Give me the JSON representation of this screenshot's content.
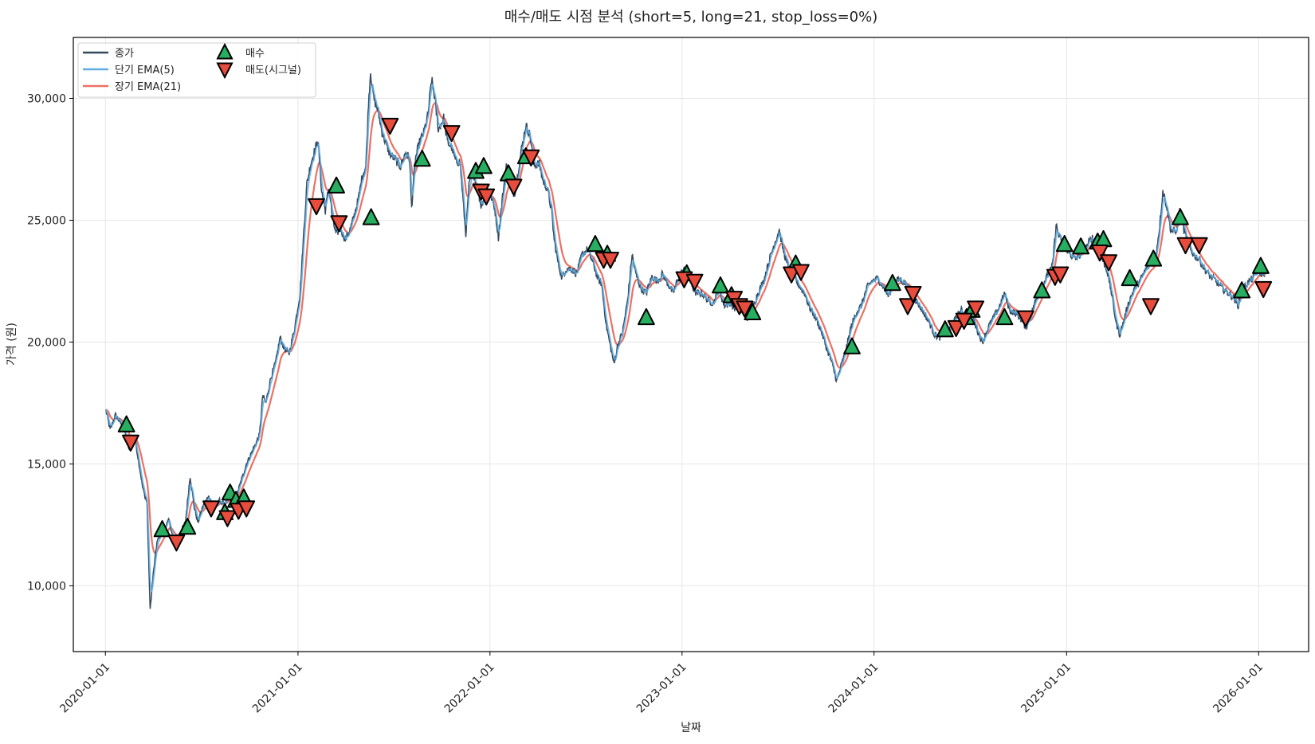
{
  "chart_data": {
    "type": "line",
    "title": "매수/매도 시점 분석 (short=5, long=21, stop_loss=0%)",
    "xlabel": "날짜",
    "ylabel": "가격 (원)",
    "x_range": [
      "2019-11-01",
      "2026-04-06"
    ],
    "ylim": [
      7300,
      32500
    ],
    "grid": true,
    "legend_position": "top-left",
    "x_ticks": [
      "2020-01-01",
      "2021-01-01",
      "2022-01-01",
      "2023-01-01",
      "2024-01-01",
      "2025-01-01",
      "2026-01-01"
    ],
    "y_ticks": [
      10000,
      15000,
      20000,
      25000,
      30000
    ],
    "y_tick_labels": [
      "10,000",
      "15,000",
      "20,000",
      "25,000",
      "30,000"
    ],
    "legend": [
      {
        "label": "종가",
        "kind": "line",
        "color": "#34495e"
      },
      {
        "label": "단기 EMA(5)",
        "kind": "line",
        "color": "#5dade2"
      },
      {
        "label": "장기 EMA(21)",
        "kind": "line",
        "color": "#ec7063"
      },
      {
        "label": "매수",
        "kind": "up",
        "color": "#27ae60"
      },
      {
        "label": "매도(시그널)",
        "kind": "down",
        "color": "#e74c3c"
      }
    ],
    "price_anchors": [
      [
        "2020-01-02",
        17200
      ],
      [
        "2020-01-10",
        16400
      ],
      [
        "2020-01-20",
        17000
      ],
      [
        "2020-02-05",
        16500
      ],
      [
        "2020-02-15",
        15600
      ],
      [
        "2020-02-25",
        16200
      ],
      [
        "2020-03-05",
        15000
      ],
      [
        "2020-03-12",
        14000
      ],
      [
        "2020-03-20",
        13400
      ],
      [
        "2020-03-26",
        9000
      ],
      [
        "2020-04-01",
        10500
      ],
      [
        "2020-04-08",
        11800
      ],
      [
        "2020-04-20",
        12300
      ],
      [
        "2020-05-01",
        12700
      ],
      [
        "2020-05-10",
        11800
      ],
      [
        "2020-05-20",
        12100
      ],
      [
        "2020-06-01",
        12600
      ],
      [
        "2020-06-10",
        14500
      ],
      [
        "2020-06-18",
        13200
      ],
      [
        "2020-06-25",
        12600
      ],
      [
        "2020-07-05",
        13300
      ],
      [
        "2020-07-15",
        13700
      ],
      [
        "2020-07-25",
        13100
      ],
      [
        "2020-08-05",
        13500
      ],
      [
        "2020-08-15",
        13300
      ],
      [
        "2020-08-25",
        13800
      ],
      [
        "2020-09-05",
        13600
      ],
      [
        "2020-09-15",
        14300
      ],
      [
        "2020-09-25",
        15000
      ],
      [
        "2020-10-10",
        15700
      ],
      [
        "2020-10-20",
        16200
      ],
      [
        "2020-10-26",
        17800
      ],
      [
        "2020-11-01",
        17500
      ],
      [
        "2020-11-10",
        18500
      ],
      [
        "2020-11-20",
        19200
      ],
      [
        "2020-11-28",
        20200
      ],
      [
        "2020-12-05",
        19800
      ],
      [
        "2020-12-15",
        19500
      ],
      [
        "2020-12-25",
        20500
      ],
      [
        "2021-01-05",
        22000
      ],
      [
        "2021-01-12",
        24500
      ],
      [
        "2021-01-18",
        26500
      ],
      [
        "2021-01-25",
        27300
      ],
      [
        "2021-02-01",
        27800
      ],
      [
        "2021-02-08",
        28300
      ],
      [
        "2021-02-15",
        26200
      ],
      [
        "2021-02-22",
        25400
      ],
      [
        "2021-03-01",
        26400
      ],
      [
        "2021-03-08",
        25000
      ],
      [
        "2021-03-15",
        24400
      ],
      [
        "2021-03-22",
        24700
      ],
      [
        "2021-04-01",
        24200
      ],
      [
        "2021-04-10",
        24600
      ],
      [
        "2021-04-18",
        25200
      ],
      [
        "2021-04-26",
        25900
      ],
      [
        "2021-05-03",
        26800
      ],
      [
        "2021-05-10",
        27200
      ],
      [
        "2021-05-15",
        29800
      ],
      [
        "2021-05-19",
        31100
      ],
      [
        "2021-05-25",
        30000
      ],
      [
        "2021-06-02",
        29500
      ],
      [
        "2021-06-10",
        28600
      ],
      [
        "2021-06-18",
        28100
      ],
      [
        "2021-06-25",
        27700
      ],
      [
        "2021-07-05",
        27500
      ],
      [
        "2021-07-15",
        27200
      ],
      [
        "2021-07-25",
        27800
      ],
      [
        "2021-08-01",
        27500
      ],
      [
        "2021-08-05",
        25500
      ],
      [
        "2021-08-12",
        27500
      ],
      [
        "2021-08-20",
        28200
      ],
      [
        "2021-08-28",
        28600
      ],
      [
        "2021-09-05",
        29300
      ],
      [
        "2021-09-12",
        30800
      ],
      [
        "2021-09-18",
        30000
      ],
      [
        "2021-09-25",
        28700
      ],
      [
        "2021-10-05",
        29200
      ],
      [
        "2021-10-12",
        28200
      ],
      [
        "2021-10-20",
        28000
      ],
      [
        "2021-10-28",
        27400
      ],
      [
        "2021-11-05",
        27400
      ],
      [
        "2021-11-12",
        25500
      ],
      [
        "2021-11-16",
        24400
      ],
      [
        "2021-11-22",
        26400
      ],
      [
        "2021-11-30",
        27000
      ],
      [
        "2021-12-08",
        26300
      ],
      [
        "2021-12-15",
        25600
      ],
      [
        "2021-12-22",
        26000
      ],
      [
        "2022-01-03",
        26000
      ],
      [
        "2022-01-10",
        25500
      ],
      [
        "2022-01-17",
        24300
      ],
      [
        "2022-01-24",
        25800
      ],
      [
        "2022-02-01",
        27200
      ],
      [
        "2022-02-10",
        26800
      ],
      [
        "2022-02-16",
        26000
      ],
      [
        "2022-02-22",
        26800
      ],
      [
        "2022-03-01",
        27800
      ],
      [
        "2022-03-10",
        28900
      ],
      [
        "2022-03-18",
        28500
      ],
      [
        "2022-03-25",
        27300
      ],
      [
        "2022-04-05",
        27300
      ],
      [
        "2022-04-12",
        26600
      ],
      [
        "2022-04-20",
        26300
      ],
      [
        "2022-04-28",
        25400
      ],
      [
        "2022-05-03",
        24200
      ],
      [
        "2022-05-10",
        23300
      ],
      [
        "2022-05-18",
        22600
      ],
      [
        "2022-05-25",
        23000
      ],
      [
        "2022-06-05",
        23000
      ],
      [
        "2022-06-15",
        22800
      ],
      [
        "2022-06-25",
        23600
      ],
      [
        "2022-07-05",
        23800
      ],
      [
        "2022-07-15",
        23300
      ],
      [
        "2022-07-25",
        22600
      ],
      [
        "2022-08-01",
        22400
      ],
      [
        "2022-08-10",
        20700
      ],
      [
        "2022-08-18",
        19800
      ],
      [
        "2022-08-25",
        19100
      ],
      [
        "2022-09-01",
        19900
      ],
      [
        "2022-09-10",
        20400
      ],
      [
        "2022-09-20",
        21800
      ],
      [
        "2022-09-28",
        23600
      ],
      [
        "2022-10-05",
        22800
      ],
      [
        "2022-10-15",
        22200
      ],
      [
        "2022-10-25",
        22000
      ],
      [
        "2022-11-05",
        22700
      ],
      [
        "2022-11-15",
        22500
      ],
      [
        "2022-11-25",
        22800
      ],
      [
        "2022-12-05",
        22400
      ],
      [
        "2022-12-15",
        22000
      ],
      [
        "2022-12-28",
        22800
      ],
      [
        "2023-01-08",
        23000
      ],
      [
        "2023-01-18",
        22400
      ],
      [
        "2023-01-28",
        22000
      ],
      [
        "2023-02-08",
        22000
      ],
      [
        "2023-02-20",
        21700
      ],
      [
        "2023-03-02",
        21600
      ],
      [
        "2023-03-12",
        22200
      ],
      [
        "2023-03-22",
        21500
      ],
      [
        "2023-04-01",
        21600
      ],
      [
        "2023-04-12",
        21400
      ],
      [
        "2023-04-22",
        21400
      ],
      [
        "2023-05-05",
        21000
      ],
      [
        "2023-05-15",
        21400
      ],
      [
        "2023-05-25",
        22000
      ],
      [
        "2023-06-05",
        22500
      ],
      [
        "2023-06-15",
        23300
      ],
      [
        "2023-06-25",
        24000
      ],
      [
        "2023-07-05",
        24600
      ],
      [
        "2023-07-12",
        23800
      ],
      [
        "2023-07-20",
        23200
      ],
      [
        "2023-08-01",
        22700
      ],
      [
        "2023-08-12",
        22300
      ],
      [
        "2023-08-22",
        22000
      ],
      [
        "2023-09-01",
        21400
      ],
      [
        "2023-09-12",
        21000
      ],
      [
        "2023-09-22",
        20500
      ],
      [
        "2023-10-02",
        19800
      ],
      [
        "2023-10-12",
        19200
      ],
      [
        "2023-10-22",
        18400
      ],
      [
        "2023-10-30",
        19000
      ],
      [
        "2023-11-08",
        19600
      ],
      [
        "2023-11-18",
        20600
      ],
      [
        "2023-11-28",
        21200
      ],
      [
        "2023-12-08",
        21500
      ],
      [
        "2023-12-18",
        22200
      ],
      [
        "2023-12-28",
        22500
      ],
      [
        "2024-01-08",
        22600
      ],
      [
        "2024-01-18",
        22300
      ],
      [
        "2024-01-28",
        21900
      ],
      [
        "2024-02-08",
        22400
      ],
      [
        "2024-02-18",
        22600
      ],
      [
        "2024-03-01",
        22400
      ],
      [
        "2024-03-12",
        22000
      ],
      [
        "2024-03-24",
        21600
      ],
      [
        "2024-04-05",
        21200
      ],
      [
        "2024-04-15",
        20800
      ],
      [
        "2024-04-25",
        20300
      ],
      [
        "2024-05-05",
        20200
      ],
      [
        "2024-05-15",
        20600
      ],
      [
        "2024-05-25",
        20500
      ],
      [
        "2024-06-05",
        21000
      ],
      [
        "2024-06-15",
        21300
      ],
      [
        "2024-06-25",
        20800
      ],
      [
        "2024-07-05",
        21200
      ],
      [
        "2024-07-15",
        20500
      ],
      [
        "2024-07-25",
        20000
      ],
      [
        "2024-08-05",
        20600
      ],
      [
        "2024-08-15",
        21000
      ],
      [
        "2024-08-25",
        21400
      ],
      [
        "2024-09-05",
        22000
      ],
      [
        "2024-09-15",
        21300
      ],
      [
        "2024-09-25",
        21200
      ],
      [
        "2024-10-05",
        21000
      ],
      [
        "2024-10-15",
        20600
      ],
      [
        "2024-10-25",
        21100
      ],
      [
        "2024-11-05",
        21800
      ],
      [
        "2024-11-15",
        22300
      ],
      [
        "2024-11-25",
        22700
      ],
      [
        "2024-12-05",
        23100
      ],
      [
        "2024-12-12",
        24800
      ],
      [
        "2024-12-18",
        24300
      ],
      [
        "2024-12-28",
        24000
      ],
      [
        "2025-01-08",
        23600
      ],
      [
        "2025-01-18",
        23400
      ],
      [
        "2025-01-28",
        23600
      ],
      [
        "2025-02-08",
        23900
      ],
      [
        "2025-02-18",
        24300
      ],
      [
        "2025-02-28",
        24000
      ],
      [
        "2025-03-08",
        23500
      ],
      [
        "2025-03-18",
        23000
      ],
      [
        "2025-03-26",
        22200
      ],
      [
        "2025-04-05",
        20800
      ],
      [
        "2025-04-12",
        20300
      ],
      [
        "2025-04-20",
        20900
      ],
      [
        "2025-04-30",
        21700
      ],
      [
        "2025-05-10",
        22200
      ],
      [
        "2025-05-20",
        22500
      ],
      [
        "2025-06-01",
        23000
      ],
      [
        "2025-06-10",
        23200
      ],
      [
        "2025-06-18",
        23300
      ],
      [
        "2025-06-26",
        24600
      ],
      [
        "2025-07-03",
        26200
      ],
      [
        "2025-07-10",
        25600
      ],
      [
        "2025-07-18",
        24600
      ],
      [
        "2025-07-28",
        24500
      ],
      [
        "2025-08-05",
        25500
      ],
      [
        "2025-08-12",
        24600
      ],
      [
        "2025-08-20",
        24000
      ],
      [
        "2025-08-30",
        23600
      ],
      [
        "2025-09-10",
        23400
      ],
      [
        "2025-09-20",
        23000
      ],
      [
        "2025-10-01",
        22700
      ],
      [
        "2025-10-12",
        22500
      ],
      [
        "2025-10-24",
        22200
      ],
      [
        "2025-11-05",
        22000
      ],
      [
        "2025-11-15",
        21800
      ],
      [
        "2025-11-23",
        21500
      ],
      [
        "2025-12-01",
        22100
      ],
      [
        "2025-12-10",
        22400
      ],
      [
        "2025-12-20",
        22600
      ],
      [
        "2025-12-30",
        22900
      ],
      [
        "2026-01-08",
        22800
      ],
      [
        "2026-01-15",
        22900
      ]
    ],
    "buy_signals": [
      [
        "2020-02-10",
        16600
      ],
      [
        "2020-04-18",
        12300
      ],
      [
        "2020-06-05",
        12400
      ],
      [
        "2020-08-15",
        13000
      ],
      [
        "2020-08-25",
        13800
      ],
      [
        "2020-09-05",
        13500
      ],
      [
        "2020-09-20",
        13600
      ],
      [
        "2021-03-15",
        26400
      ],
      [
        "2021-05-20",
        25100
      ],
      [
        "2021-08-25",
        27500
      ],
      [
        "2021-12-05",
        27000
      ],
      [
        "2021-12-20",
        27200
      ],
      [
        "2022-02-05",
        26900
      ],
      [
        "2022-03-10",
        27600
      ],
      [
        "2022-07-20",
        24000
      ],
      [
        "2022-08-12",
        23600
      ],
      [
        "2022-10-25",
        21000
      ],
      [
        "2023-01-10",
        22800
      ],
      [
        "2023-03-15",
        22300
      ],
      [
        "2023-04-05",
        21900
      ],
      [
        "2023-05-15",
        21200
      ],
      [
        "2023-08-05",
        23200
      ],
      [
        "2023-11-20",
        19800
      ],
      [
        "2024-02-05",
        22400
      ],
      [
        "2024-05-15",
        20500
      ],
      [
        "2024-06-25",
        21000
      ],
      [
        "2024-07-05",
        21300
      ],
      [
        "2024-09-05",
        21000
      ],
      [
        "2024-11-15",
        22100
      ],
      [
        "2024-12-28",
        24000
      ],
      [
        "2025-01-28",
        23900
      ],
      [
        "2025-03-01",
        24100
      ],
      [
        "2025-03-12",
        24200
      ],
      [
        "2025-05-01",
        22600
      ],
      [
        "2025-06-15",
        23400
      ],
      [
        "2025-08-05",
        25100
      ],
      [
        "2025-11-30",
        22100
      ],
      [
        "2026-01-05",
        23100
      ]
    ],
    "sell_signals": [
      [
        "2020-02-18",
        15900
      ],
      [
        "2020-05-15",
        11800
      ],
      [
        "2020-07-20",
        13200
      ],
      [
        "2020-08-20",
        12800
      ],
      [
        "2020-09-10",
        13100
      ],
      [
        "2020-09-25",
        13200
      ],
      [
        "2021-02-05",
        25600
      ],
      [
        "2021-03-20",
        24900
      ],
      [
        "2021-06-25",
        28900
      ],
      [
        "2021-10-20",
        28600
      ],
      [
        "2021-12-15",
        26200
      ],
      [
        "2021-12-25",
        26000
      ],
      [
        "2022-02-15",
        26400
      ],
      [
        "2022-03-20",
        27600
      ],
      [
        "2022-08-05",
        23400
      ],
      [
        "2022-08-18",
        23400
      ],
      [
        "2023-01-05",
        22600
      ],
      [
        "2023-01-25",
        22500
      ],
      [
        "2023-04-10",
        21800
      ],
      [
        "2023-04-20",
        21500
      ],
      [
        "2023-04-30",
        21400
      ],
      [
        "2023-07-28",
        22800
      ],
      [
        "2023-08-15",
        22900
      ],
      [
        "2024-03-05",
        21500
      ],
      [
        "2024-03-15",
        22000
      ],
      [
        "2024-06-05",
        20600
      ],
      [
        "2024-06-20",
        20900
      ],
      [
        "2024-07-12",
        21400
      ],
      [
        "2024-10-15",
        21000
      ],
      [
        "2024-12-10",
        22700
      ],
      [
        "2024-12-20",
        22800
      ],
      [
        "2025-03-05",
        23700
      ],
      [
        "2025-03-22",
        23300
      ],
      [
        "2025-06-10",
        21500
      ],
      [
        "2025-08-15",
        24000
      ],
      [
        "2025-09-10",
        24000
      ],
      [
        "2026-01-10",
        22200
      ]
    ]
  }
}
